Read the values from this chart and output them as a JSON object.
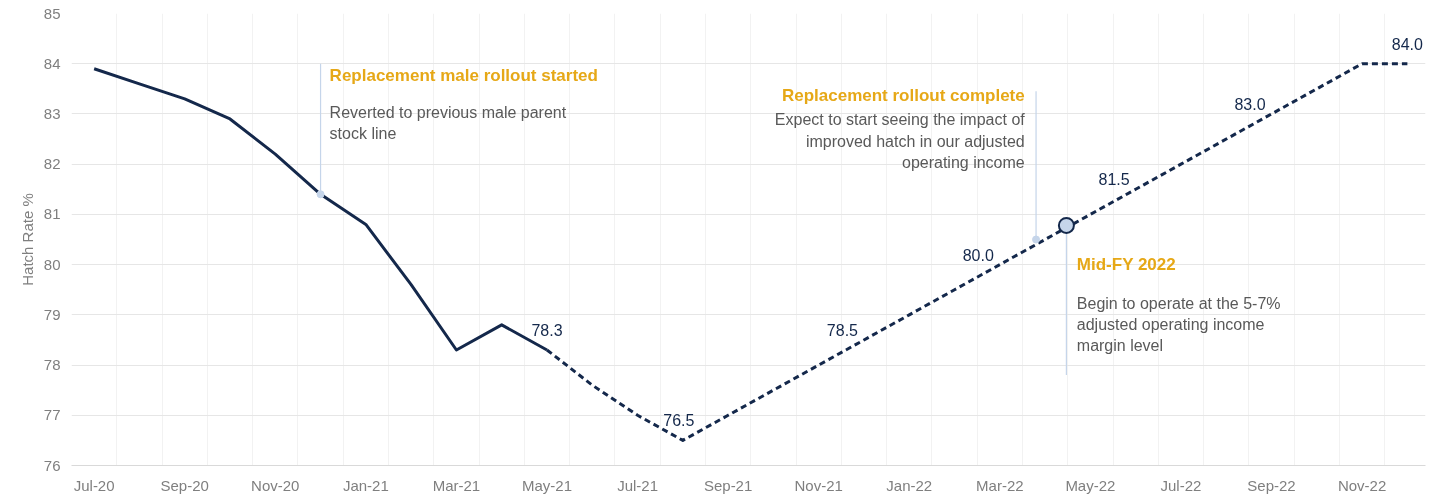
{
  "chart_data": {
    "type": "line",
    "ylabel": "Hatch Rate %",
    "x": [
      "2020-07",
      "2020-08",
      "2020-09",
      "2020-10",
      "2020-11",
      "2020-12",
      "2021-01",
      "2021-02",
      "2021-03",
      "2021-04",
      "2021-05",
      "2021-06",
      "2021-07",
      "2021-08",
      "2021-09",
      "2021-10",
      "2021-11",
      "2021-12",
      "2022-01",
      "2022-02",
      "2022-03",
      "2022-04",
      "2022-05",
      "2022-06",
      "2022-07",
      "2022-08",
      "2022-09",
      "2022-10",
      "2022-11",
      "2022-12"
    ],
    "series": [
      {
        "color": "#14284b",
        "line_style": "solid",
        "values": [
          83.9,
          83.6,
          83.3,
          82.9,
          82.2,
          81.4,
          80.8,
          79.6,
          78.3,
          78.8,
          78.3,
          null,
          null,
          null,
          null,
          null,
          null,
          null,
          null,
          null,
          null,
          null,
          null,
          null,
          null,
          null,
          null,
          null,
          null,
          null
        ]
      },
      {
        "color": "#14284b",
        "line_style": "dashed",
        "values": [
          null,
          null,
          null,
          null,
          null,
          null,
          null,
          null,
          null,
          null,
          78.3,
          77.6,
          77.0,
          76.5,
          77.0,
          77.5,
          78.0,
          78.5,
          79.0,
          79.5,
          80.0,
          80.5,
          81.0,
          81.5,
          82.0,
          82.5,
          83.0,
          83.5,
          84.0,
          84.0
        ],
        "value_labels": [
          null,
          null,
          null,
          null,
          null,
          null,
          null,
          null,
          null,
          null,
          "78.3",
          null,
          null,
          "76.5",
          null,
          null,
          null,
          "78.5",
          null,
          null,
          "80.0",
          null,
          null,
          "81.5",
          null,
          null,
          "83.0",
          null,
          null,
          "84.0"
        ]
      }
    ],
    "xlim": [
      "2020-06-16",
      "2022-12-13"
    ],
    "xticks": [
      {
        "value": "2020-07",
        "label": "Jul-20"
      },
      {
        "value": "2020-09",
        "label": "Sep-20"
      },
      {
        "value": "2020-11",
        "label": "Nov-20"
      },
      {
        "value": "2021-01",
        "label": "Jan-21"
      },
      {
        "value": "2021-03",
        "label": "Mar-21"
      },
      {
        "value": "2021-05",
        "label": "May-21"
      },
      {
        "value": "2021-07",
        "label": "Jul-21"
      },
      {
        "value": "2021-09",
        "label": "Sep-21"
      },
      {
        "value": "2021-11",
        "label": "Nov-21"
      },
      {
        "value": "2022-01",
        "label": "Jan-22"
      },
      {
        "value": "2022-03",
        "label": "Mar-22"
      },
      {
        "value": "2022-05",
        "label": "May-22"
      },
      {
        "value": "2022-07",
        "label": "Jul-22"
      },
      {
        "value": "2022-09",
        "label": "Sep-22"
      },
      {
        "value": "2022-11",
        "label": "Nov-22"
      }
    ],
    "ylim": [
      76,
      85
    ],
    "yticks": [
      76,
      77,
      78,
      79,
      80,
      81,
      82,
      83,
      84,
      85
    ],
    "grid": true,
    "marker": "none",
    "annotations": [
      {
        "text": "Replacement male rollout started",
        "x": "2020-12",
        "y": 81.4
      },
      "Reverted to previous male parent\nstock line",
      {
        "text": "Replacement rollout complete",
        "x": "2022-03-25",
        "y": 80.5
      },
      "Expect to start seeing the impact of\nimproved hatch in our adjusted\noperating income",
      "Mid-FY 2022",
      "Begin to operate at the 5-7%\nadjusted operating income\nmargin level"
    ]
  }
}
